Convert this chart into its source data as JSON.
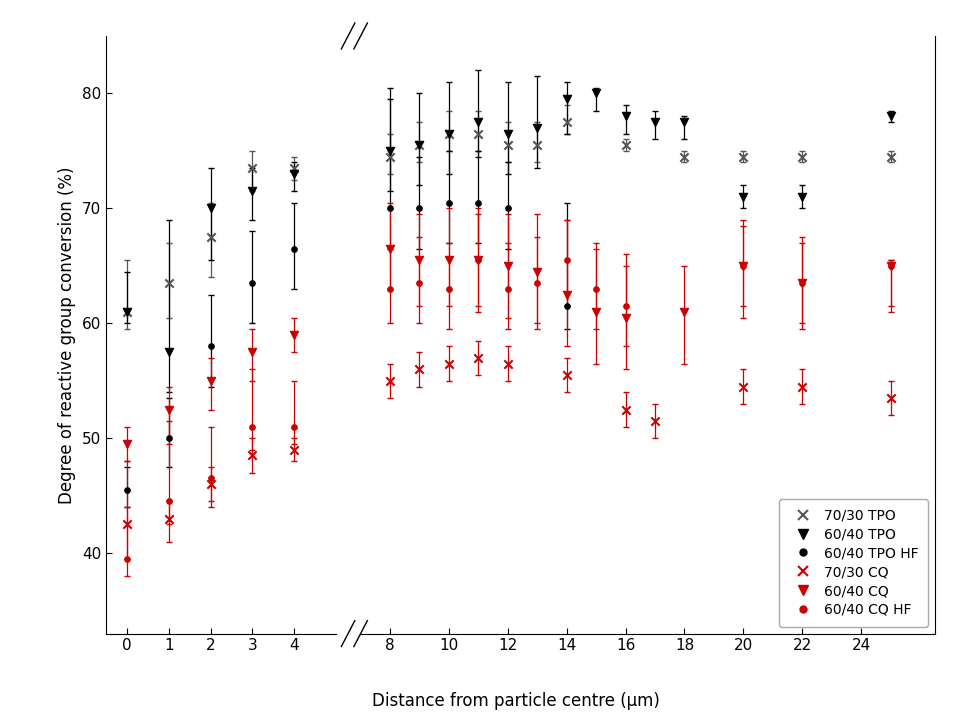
{
  "xlabel": "Distance from particle centre (μm)",
  "ylabel": "Degree of reactive group conversion (%)",
  "ylim": [
    33,
    85
  ],
  "yticks": [
    40,
    50,
    60,
    70,
    80
  ],
  "background_color": "#ffffff",
  "series": {
    "tpo_7030": {
      "label": "70/30 TPO",
      "color": "#555555",
      "marker": "x",
      "x1": [
        0,
        1,
        2,
        3,
        4
      ],
      "y1": [
        61.0,
        63.5,
        67.5,
        73.5,
        73.5
      ],
      "yerr1_lo": [
        1.5,
        3.0,
        3.5,
        2.0,
        1.0
      ],
      "yerr1_hi": [
        4.5,
        3.5,
        3.0,
        1.5,
        1.0
      ],
      "x2": [
        8,
        9,
        10,
        11,
        12,
        13,
        14,
        16,
        18,
        20,
        22,
        25
      ],
      "y2": [
        74.5,
        75.5,
        76.5,
        76.5,
        75.5,
        75.5,
        77.5,
        75.5,
        74.5,
        74.5,
        74.5,
        74.5
      ],
      "yerr2_lo": [
        1.5,
        1.5,
        1.5,
        1.5,
        1.5,
        1.5,
        1.0,
        0.5,
        0.5,
        0.5,
        0.5,
        0.5
      ],
      "yerr2_hi": [
        2.0,
        2.0,
        2.0,
        2.0,
        2.0,
        2.0,
        1.5,
        0.5,
        0.5,
        0.5,
        0.5,
        0.5
      ]
    },
    "tpo_6040": {
      "label": "60/40 TPO",
      "color": "#000000",
      "marker": "v",
      "x1": [
        0,
        1,
        2,
        3,
        4
      ],
      "y1": [
        61.0,
        57.5,
        70.0,
        71.5,
        73.0
      ],
      "yerr1_lo": [
        1.0,
        3.5,
        4.5,
        2.5,
        1.5
      ],
      "yerr1_hi": [
        3.5,
        11.5,
        3.5,
        2.0,
        1.0
      ],
      "x2": [
        8,
        9,
        10,
        11,
        12,
        13,
        14,
        15,
        16,
        17,
        18,
        20,
        22,
        25
      ],
      "y2": [
        75.0,
        75.5,
        76.5,
        77.5,
        76.5,
        77.0,
        79.5,
        80.0,
        78.0,
        77.5,
        77.5,
        71.0,
        71.0,
        78.0
      ],
      "yerr2_lo": [
        3.5,
        3.5,
        3.5,
        3.0,
        3.5,
        3.5,
        3.0,
        1.5,
        1.5,
        1.5,
        1.5,
        1.0,
        1.0,
        0.5
      ],
      "yerr2_hi": [
        4.5,
        4.5,
        4.5,
        4.5,
        4.5,
        4.5,
        1.5,
        0.5,
        1.0,
        1.0,
        0.5,
        1.0,
        1.0,
        0.5
      ]
    },
    "tpo_hf": {
      "label": "60/40 TPO HF",
      "color": "#000000",
      "marker": "o",
      "x1": [
        0,
        1,
        2,
        3,
        4
      ],
      "y1": [
        45.5,
        50.0,
        58.0,
        63.5,
        66.5
      ],
      "yerr1_lo": [
        1.5,
        2.5,
        3.5,
        3.5,
        3.5
      ],
      "yerr1_hi": [
        2.0,
        3.5,
        4.5,
        4.5,
        4.0
      ],
      "x2": [
        8,
        9,
        10,
        11,
        12,
        14
      ],
      "y2": [
        70.0,
        70.0,
        70.5,
        70.5,
        70.0,
        61.5
      ],
      "yerr2_lo": [
        3.5,
        3.5,
        3.5,
        3.5,
        3.5,
        2.0
      ],
      "yerr2_hi": [
        10.5,
        4.5,
        4.5,
        4.5,
        4.0,
        9.0
      ]
    },
    "cq_7030": {
      "label": "70/30 CQ",
      "color": "#cc0000",
      "marker": "x",
      "x1": [
        0,
        1,
        2,
        3,
        4
      ],
      "y1": [
        42.5,
        43.0,
        46.0,
        48.5,
        49.0
      ],
      "yerr1_lo": [
        3.0,
        2.0,
        1.5,
        1.5,
        1.0
      ],
      "yerr1_hi": [
        1.5,
        1.5,
        1.5,
        1.5,
        1.0
      ],
      "x2": [
        8,
        9,
        10,
        11,
        12,
        14,
        16,
        17,
        20,
        22,
        25
      ],
      "y2": [
        55.0,
        56.0,
        56.5,
        57.0,
        56.5,
        55.5,
        52.5,
        51.5,
        54.5,
        54.5,
        53.5
      ],
      "yerr2_lo": [
        1.5,
        1.5,
        1.5,
        1.5,
        1.5,
        1.5,
        1.5,
        1.5,
        1.5,
        1.5,
        1.5
      ],
      "yerr2_hi": [
        1.5,
        1.5,
        1.5,
        1.5,
        1.5,
        1.5,
        1.5,
        1.5,
        1.5,
        1.5,
        1.5
      ]
    },
    "cq_6040": {
      "label": "60/40 CQ",
      "color": "#cc0000",
      "marker": "v",
      "x1": [
        0,
        1,
        2,
        3,
        4
      ],
      "y1": [
        49.5,
        52.5,
        55.0,
        57.5,
        59.0
      ],
      "yerr1_lo": [
        1.5,
        3.0,
        2.5,
        2.5,
        1.5
      ],
      "yerr1_hi": [
        1.5,
        2.0,
        2.0,
        2.0,
        1.5
      ],
      "x2": [
        8,
        9,
        10,
        11,
        12,
        13,
        14,
        15,
        16,
        18,
        20,
        22,
        25
      ],
      "y2": [
        66.5,
        65.5,
        65.5,
        65.5,
        65.0,
        64.5,
        62.5,
        61.0,
        60.5,
        61.0,
        65.0,
        63.5,
        65.0
      ],
      "yerr2_lo": [
        3.5,
        4.0,
        4.0,
        4.5,
        4.5,
        4.5,
        4.5,
        4.5,
        4.5,
        4.5,
        4.5,
        4.0,
        4.0
      ],
      "yerr2_hi": [
        4.0,
        4.0,
        4.5,
        4.5,
        4.5,
        5.0,
        6.5,
        5.5,
        5.5,
        4.0,
        4.0,
        4.0,
        0.5
      ]
    },
    "cq_hf": {
      "label": "60/40 CQ HF",
      "color": "#cc0000",
      "marker": "o",
      "x1": [
        0,
        1,
        2,
        3,
        4
      ],
      "y1": [
        39.5,
        44.5,
        46.5,
        51.0,
        51.0
      ],
      "yerr1_lo": [
        1.5,
        2.0,
        2.5,
        2.0,
        1.5
      ],
      "yerr1_hi": [
        8.5,
        7.0,
        4.5,
        5.0,
        4.0
      ],
      "x2": [
        8,
        9,
        10,
        11,
        12,
        13,
        14,
        15,
        16,
        20,
        22,
        25
      ],
      "y2": [
        63.0,
        63.5,
        63.0,
        65.5,
        63.0,
        63.5,
        65.5,
        63.0,
        61.5,
        65.0,
        63.5,
        65.0
      ],
      "yerr2_lo": [
        3.0,
        3.5,
        3.5,
        4.0,
        3.5,
        4.0,
        4.0,
        3.5,
        3.5,
        3.5,
        3.5,
        3.5
      ],
      "yerr2_hi": [
        3.5,
        4.0,
        4.0,
        4.0,
        4.0,
        4.0,
        3.5,
        4.0,
        3.5,
        3.5,
        3.5,
        0.5
      ]
    }
  },
  "x1ticks": [
    0,
    1,
    2,
    3,
    4
  ],
  "x2ticks": [
    8,
    10,
    12,
    14,
    16,
    18,
    20,
    22,
    24
  ]
}
